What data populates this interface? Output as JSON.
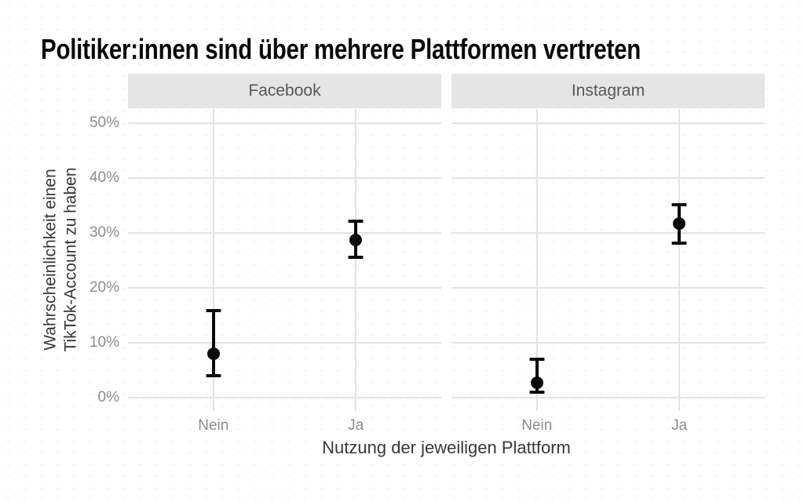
{
  "title": "Politiker:innen sind über mehrere Plattformen vertreten",
  "chart_data": {
    "type": "scatter",
    "subtype": "point estimates with confidence-interval error bars, two facets",
    "title": "Politiker:innen sind über mehrere Plattformen vertreten",
    "facets": [
      {
        "label": "Facebook",
        "points": [
          {
            "category": "Nein",
            "value_pct": 7.9,
            "ci_low_pct": 3.9,
            "ci_high_pct": 15.8
          },
          {
            "category": "Ja",
            "value_pct": 28.6,
            "ci_low_pct": 25.5,
            "ci_high_pct": 32.1
          }
        ]
      },
      {
        "label": "Instagram",
        "points": [
          {
            "category": "Nein",
            "value_pct": 2.7,
            "ci_low_pct": 1.0,
            "ci_high_pct": 7.0
          },
          {
            "category": "Ja",
            "value_pct": 31.6,
            "ci_low_pct": 28.1,
            "ci_high_pct": 35.1
          }
        ]
      }
    ],
    "categories": [
      "Nein",
      "Ja"
    ],
    "xlabel": "Nutzung der jeweiligen Plattform",
    "ylabel": "Wahrscheinlichkeit einen TikTok-Account zu haben",
    "ylabel_lines": [
      "Wahrscheinlichkeit einen",
      "TikTok-Account zu haben"
    ],
    "ylim": [
      0,
      50
    ],
    "yticks": [
      0,
      10,
      20,
      30,
      40,
      50
    ],
    "ytick_labels": [
      "0%",
      "10%",
      "20%",
      "30%",
      "40%",
      "50%"
    ],
    "grid": "major horizontal lines at 10% steps plus vertical lines at each category",
    "legend": "none",
    "point_color": "#000000"
  },
  "colors": {
    "background": "#ffffff",
    "texture_dash": "#f5f5f5",
    "gridline": "#e3e3e3",
    "strip_bg": "#e5e5e5",
    "strip_text": "#575757",
    "tick_text": "#8c8c8c",
    "axis_title_text": "#383838",
    "title_text": "#0a0a0a",
    "point": "#0b0b0b"
  }
}
